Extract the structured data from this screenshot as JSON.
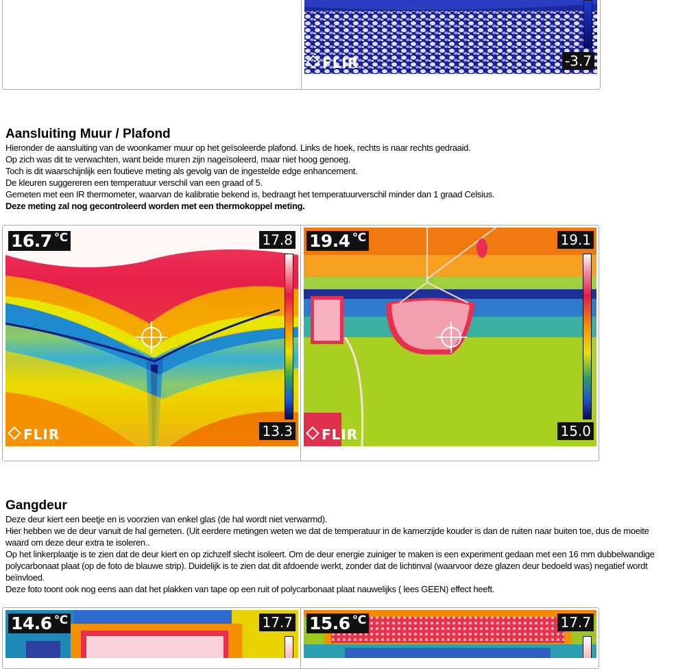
{
  "top_section": {
    "right_image": {
      "scale_min": "-3.7",
      "brand": "FLIR"
    }
  },
  "muur_plafond": {
    "heading": "Aansluiting Muur / Plafond",
    "lines": [
      "Hieronder de aansluiting  van de woonkamer muur op het geïsoleerde plafond. Links de hoek, rechts is  naar  rechts gedraaid.",
      "Op zich  was dit te verwachten, want beide muren zijn nageïsoleerd, maar niet hoog genoeg.",
      "Toch is dit waarschijnlijk  een foutieve meting als gevolg van de ingestelde edge enhancement.",
      "De kleuren suggereren een temperatuur verschil  van een graad of 5.",
      "Gemeten met een IR thermometer, waarvan de kalibratie  bekend is, bedraagt het temperatuurverschil minder dan 1 graad  Celsius."
    ],
    "bold_line": "Deze meting zal nog gecontroleerd worden met een thermokoppel meting.",
    "left_image": {
      "spot": "16.7",
      "unit": "°C",
      "scale_max": "17.8",
      "scale_min": "13.3",
      "brand": "FLIR"
    },
    "right_image": {
      "spot": "19.4",
      "unit": "°C",
      "scale_max": "19.1",
      "scale_min": "15.0",
      "brand": "FLIR"
    }
  },
  "gangdeur": {
    "heading": "Gangdeur",
    "lines": [
      "Deze deur kiert een beetje en is voorzien van enkel glas  (de hal wordt niet verwarmd).",
      "Hier hebben we de deur vanuit de hal gemeten. (Uit eerdere metingen weten we dat de temperatuur in de kamerzijde kouder is  dan de ruiten naar  buiten toe, dus de moeite waard om deze deur extra te isoleren..",
      "Op het linkerplaatje  is  te zien dat de deur kiert en op zichzelf slecht isoleert.  Om de deur energie zuiniger te maken is  een experiment gedaan met een 16 mm dubbelwandige polycarbonaat  plaat  (op de foto de blauwe strip).  Duidelijk  is  te zien dat dit afdoende werkt, zonder dat de lichtinval  (waarvoor  deze glazen deur bedoeld was) negatief wordt beïnvloed.",
      "Deze foto toont ook nog eens aan dat het plakken van tape op een ruit of polycarbonaat  plaat  nauwelijks ( lees GEEN) effect heeft."
    ],
    "left_image": {
      "spot": "14.6",
      "unit": "°C",
      "scale_max": "17.7"
    },
    "right_image": {
      "spot": "15.6",
      "unit": "°C",
      "scale_max": "17.7"
    }
  }
}
